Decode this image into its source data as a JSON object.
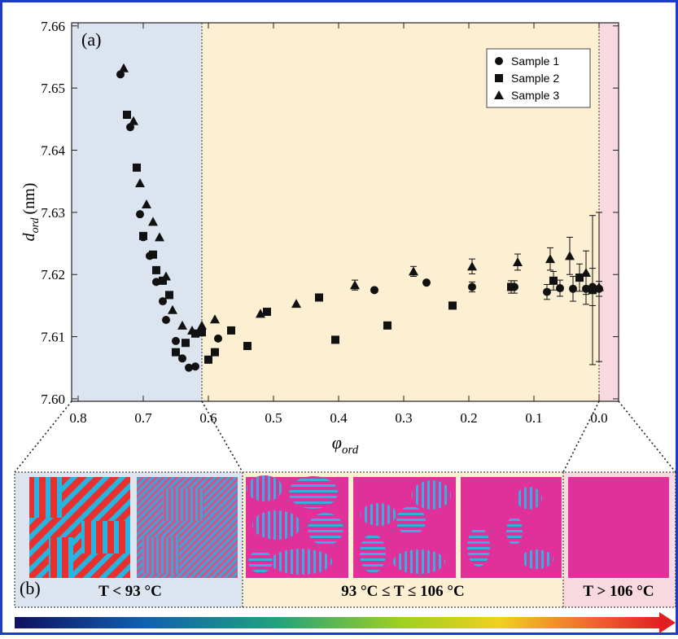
{
  "chart_data": {
    "type": "scatter",
    "panel_label": "(a)",
    "x_label": {
      "main": "φ",
      "sub": "ord"
    },
    "y_label": {
      "main": "d",
      "sub": "ord",
      "unit": "(nm)"
    },
    "xlim": [
      0.81,
      -0.03
    ],
    "ylim": [
      7.5996,
      7.6605
    ],
    "xticks": [
      0.8,
      0.7,
      0.6,
      0.5,
      0.4,
      0.3,
      0.2,
      0.1,
      {
        "value": 0,
        "label": "0.0"
      }
    ],
    "yticks": [
      {
        "value": 7.6,
        "label": "7.60"
      },
      7.61,
      7.62,
      7.63,
      7.64,
      7.65,
      7.66
    ],
    "regions": [
      {
        "from": 0.81,
        "to": 0.61,
        "color": "#dbe4ef"
      },
      {
        "from": 0.61,
        "to": 0.0,
        "color": "#fcefd2"
      },
      {
        "from": 0.0,
        "to": -0.03,
        "color": "#f8d9e0"
      }
    ],
    "series": [
      {
        "name": "Sample 1",
        "marker": "circle",
        "color": "#111111",
        "x": [
          0.735,
          0.72,
          0.705,
          0.7,
          0.69,
          0.68,
          0.67,
          0.665,
          0.65,
          0.64,
          0.63,
          0.62,
          0.585,
          0.345,
          0.265,
          0.195,
          0.13,
          0.08,
          0.06,
          0.04,
          0.02,
          0.01,
          0.0
        ],
        "values": [
          7.6522,
          7.6437,
          7.6297,
          7.626,
          7.623,
          7.6188,
          7.6157,
          7.6127,
          7.6093,
          7.6065,
          7.605,
          7.6052,
          7.6097,
          7.6175,
          7.6187,
          7.618,
          7.618,
          7.6172,
          7.6178,
          7.6177,
          7.6177,
          7.618,
          7.6177
        ],
        "errors": [
          null,
          null,
          null,
          null,
          null,
          null,
          null,
          null,
          null,
          null,
          null,
          null,
          null,
          null,
          null,
          0.0008,
          0.001,
          0.0012,
          0.0013,
          0.002,
          0.0025,
          0.003,
          0.0012
        ]
      },
      {
        "name": "Sample 2",
        "marker": "square",
        "color": "#111111",
        "x": [
          0.725,
          0.71,
          0.7,
          0.685,
          0.68,
          0.67,
          0.66,
          0.65,
          0.635,
          0.62,
          0.61,
          0.6,
          0.59,
          0.565,
          0.54,
          0.51,
          0.43,
          0.405,
          0.325,
          0.225,
          0.135,
          0.07,
          0.03,
          0.01
        ],
        "values": [
          7.6457,
          7.6372,
          7.6262,
          7.6232,
          7.6207,
          7.619,
          7.6167,
          7.6075,
          7.609,
          7.6105,
          7.6107,
          7.6063,
          7.6075,
          7.611,
          7.6085,
          7.614,
          7.6163,
          7.6095,
          7.6118,
          7.615,
          7.618,
          7.619,
          7.6195,
          7.6175
        ],
        "errors": [
          null,
          null,
          null,
          null,
          null,
          null,
          null,
          null,
          null,
          null,
          null,
          null,
          null,
          null,
          null,
          null,
          null,
          null,
          null,
          null,
          0.001,
          0.0015,
          0.0022,
          0.012
        ]
      },
      {
        "name": "Sample 3",
        "marker": "triangle",
        "color": "#111111",
        "x": [
          0.73,
          0.715,
          0.705,
          0.695,
          0.685,
          0.675,
          0.665,
          0.655,
          0.64,
          0.625,
          0.61,
          0.59,
          0.52,
          0.465,
          0.375,
          0.285,
          0.195,
          0.125,
          0.075,
          0.045,
          0.02,
          0.0
        ],
        "values": [
          7.6532,
          7.6447,
          7.6347,
          7.6313,
          7.6285,
          7.626,
          7.6197,
          7.6143,
          7.6118,
          7.611,
          7.6118,
          7.6128,
          7.6137,
          7.6153,
          7.6183,
          7.6205,
          7.6213,
          7.622,
          7.6225,
          7.623,
          7.6203,
          7.618
        ],
        "errors": [
          null,
          null,
          null,
          null,
          null,
          null,
          null,
          null,
          null,
          null,
          null,
          null,
          null,
          null,
          0.0008,
          0.0008,
          0.0012,
          0.0013,
          0.0018,
          0.003,
          0.0035,
          0.012
        ]
      }
    ]
  },
  "panel_b": {
    "label": "(b)",
    "regions": [
      "T < 93 °C",
      "93 °C ≤ T ≤ 106 °C",
      "T > 106 °C"
    ]
  }
}
